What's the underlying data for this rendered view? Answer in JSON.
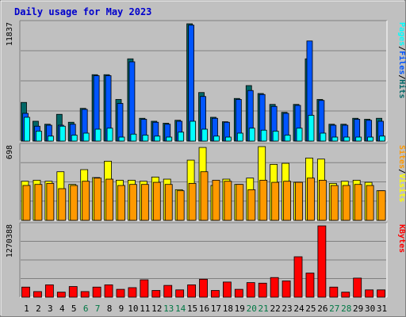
{
  "chart_data": {
    "type": "bar",
    "title": "Daily usage for May 2023",
    "categories": [
      "1",
      "2",
      "3",
      "4",
      "5",
      "6",
      "7",
      "8",
      "9",
      "10",
      "11",
      "12",
      "13",
      "14",
      "15",
      "16",
      "17",
      "18",
      "19",
      "20",
      "21",
      "22",
      "23",
      "24",
      "25",
      "26",
      "27",
      "28",
      "29",
      "30",
      "31"
    ],
    "weekend_days": [
      "6",
      "7",
      "13",
      "14",
      "20",
      "21",
      "27",
      "28"
    ],
    "panels": [
      {
        "name": "pages-files-hits",
        "max_label": "11837",
        "ymax": 11837,
        "legend": [
          "Pages",
          "/",
          "Files",
          "/",
          "Hits"
        ],
        "series": [
          {
            "name": "Hits",
            "color": "#006666",
            "values": [
              3900,
              2000,
              1700,
              2700,
              1900,
              3300,
              6700,
              6700,
              4200,
              8300,
              2300,
              2000,
              1800,
              2100,
              11837,
              4900,
              2400,
              1950,
              4300,
              5600,
              4800,
              3700,
              2900,
              3700,
              8300,
              4200,
              1700,
              1700,
              2300,
              2200,
              2300
            ]
          },
          {
            "name": "Files",
            "color": "#0055ff",
            "values": [
              2800,
              1500,
              1600,
              1600,
              1700,
              3200,
              6600,
              6600,
              3800,
              8000,
              2200,
              1900,
              1700,
              2000,
              11700,
              4500,
              2300,
              1900,
              4200,
              5100,
              4700,
              3500,
              2800,
              3600,
              10100,
              4100,
              1600,
              1600,
              2200,
              2100,
              2000
            ]
          },
          {
            "name": "Pages",
            "color": "#00ffff",
            "values": [
              2400,
              1000,
              500,
              1500,
              600,
              800,
              1200,
              1300,
              400,
              700,
              600,
              500,
              400,
              900,
              2000,
              1200,
              500,
              400,
              800,
              1300,
              1100,
              1000,
              600,
              1300,
              2600,
              800,
              400,
              400,
              400,
              400,
              500
            ]
          }
        ]
      },
      {
        "name": "visits-sites",
        "max_label": "698",
        "ymax": 698,
        "legend": [
          "Sites",
          "/",
          "Visits"
        ],
        "series": [
          {
            "name": "Visits",
            "color": "#ffff00",
            "values": [
              370,
              380,
              370,
              460,
              340,
              480,
              405,
              560,
              380,
              380,
              370,
              410,
              390,
              290,
              570,
              690,
              330,
              390,
              340,
              400,
              698,
              530,
              540,
              360,
              590,
              580,
              350,
              370,
              380,
              360,
              280
            ]
          },
          {
            "name": "Sites",
            "color": "#ff9900",
            "values": [
              330,
              340,
              350,
              300,
              330,
              370,
              400,
              390,
              330,
              340,
              340,
              360,
              340,
              280,
              350,
              460,
              380,
              370,
              340,
              290,
              380,
              360,
              370,
              360,
              400,
              380,
              330,
              330,
              340,
              330,
              280
            ]
          }
        ]
      },
      {
        "name": "kbytes",
        "max_label": "1270388",
        "ymax": 1270388,
        "legend": [
          "KBytes"
        ],
        "series": [
          {
            "name": "KBytes",
            "color": "#ff0000",
            "values": [
              180000,
              100000,
              220000,
              90000,
              190000,
              100000,
              180000,
              220000,
              140000,
              170000,
              310000,
              120000,
              210000,
              130000,
              220000,
              320000,
              120000,
              270000,
              140000,
              260000,
              250000,
              350000,
              290000,
              720000,
              430000,
              1270388,
              180000,
              90000,
              340000,
              130000,
              130000
            ]
          }
        ]
      }
    ]
  }
}
